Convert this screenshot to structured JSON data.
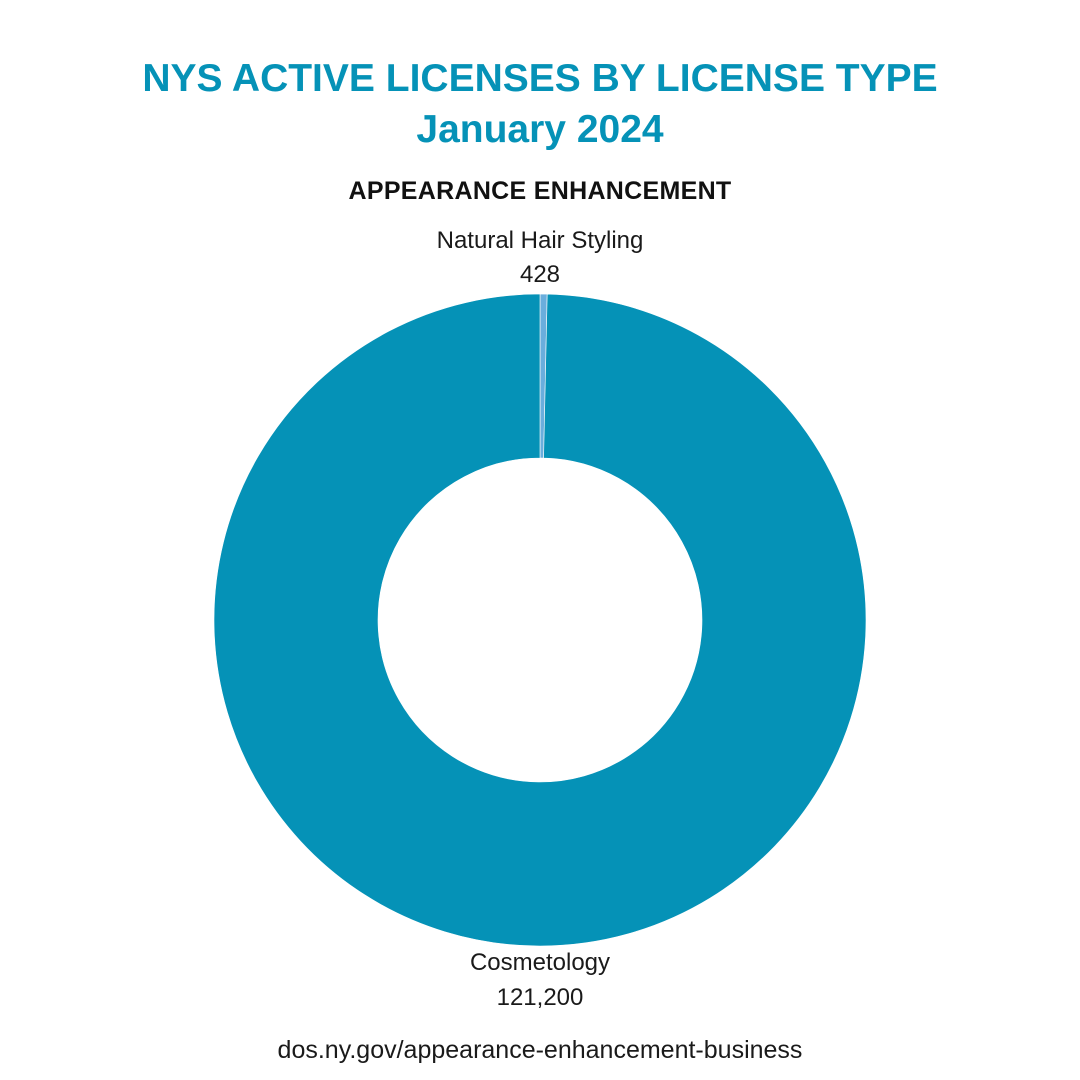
{
  "header": {
    "title_line1": "NYS ACTIVE LICENSES BY LICENSE TYPE",
    "title_line2": "January 2024",
    "subtitle": "APPEARANCE ENHANCEMENT"
  },
  "footer": {
    "url_text": "dos.ny.gov/appearance-enhancement-business"
  },
  "colors": {
    "title": "#0592b7",
    "accent": "#0592b7"
  },
  "chart_data": {
    "type": "pie",
    "donut": true,
    "title": "APPEARANCE ENHANCEMENT",
    "slices": [
      {
        "label": "Natural Hair Styling",
        "value": 428,
        "value_text": "428",
        "color": "#6aaedd"
      },
      {
        "label": "Cosmetology",
        "value": 121200,
        "value_text": "121,200",
        "color": "#0592b7"
      }
    ]
  }
}
